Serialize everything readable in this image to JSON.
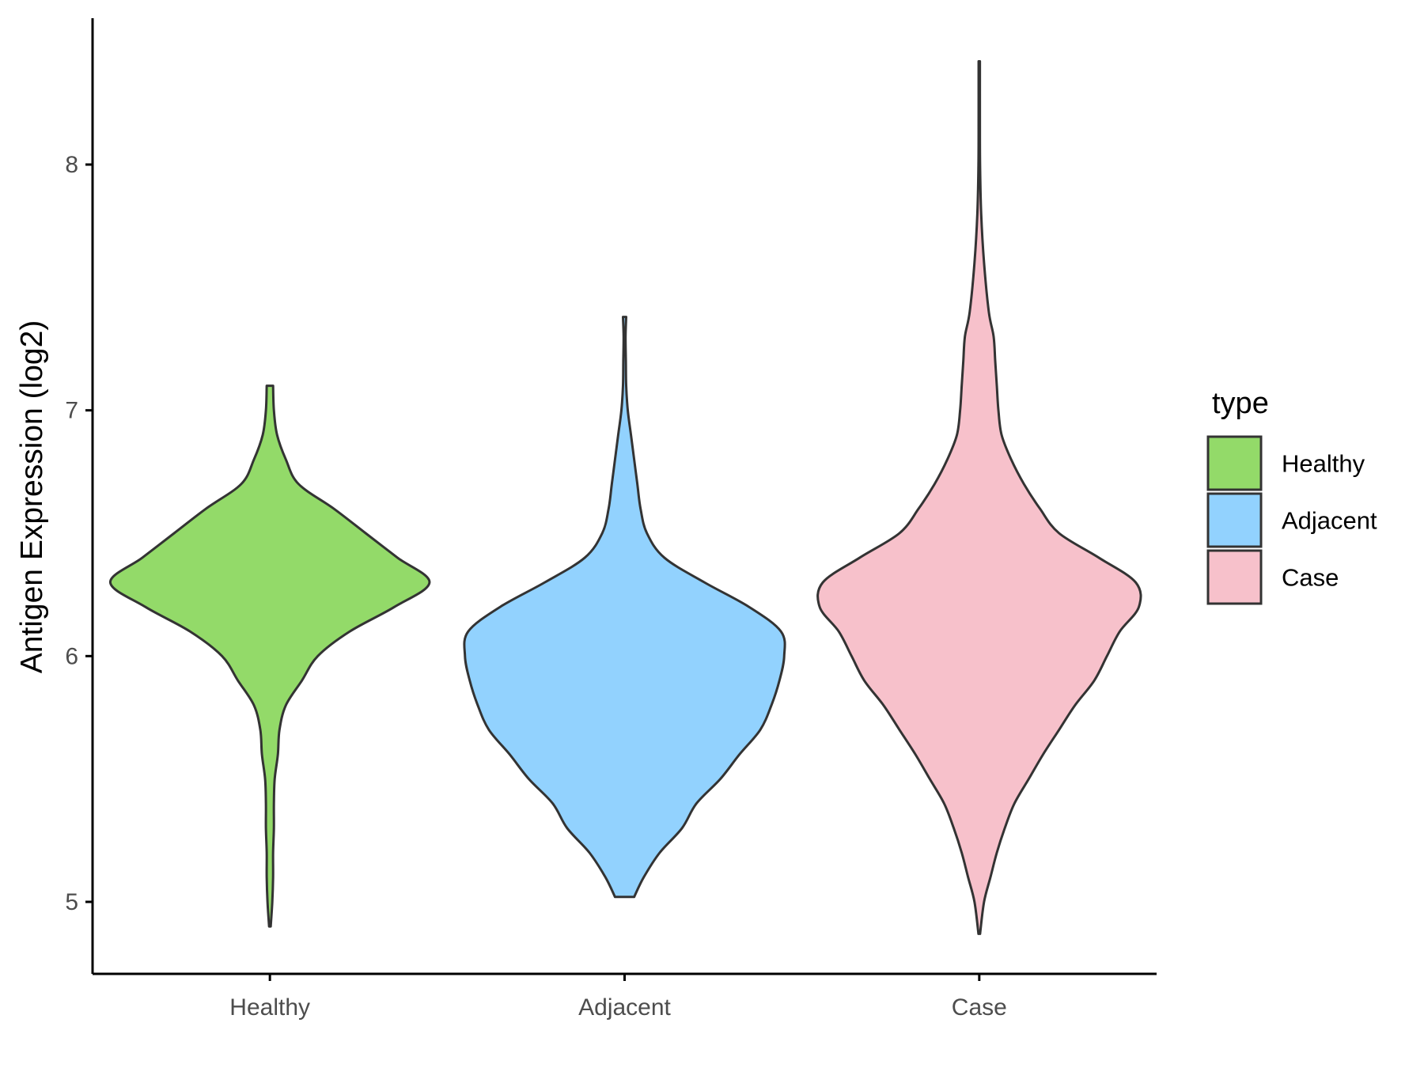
{
  "chart_data": {
    "type": "violin",
    "title": "",
    "xlabel": "",
    "ylabel": "Antigen Expression (log2)",
    "categories": [
      "Healthy",
      "Adjacent",
      "Case"
    ],
    "ylim": [
      4.7,
      8.6
    ],
    "yticks": [
      5,
      6,
      7,
      8
    ],
    "legend": {
      "title": "type",
      "position": "right",
      "entries": [
        "Healthy",
        "Adjacent",
        "Case"
      ]
    },
    "colors": {
      "Healthy": "#93da69",
      "Adjacent": "#92d2fe",
      "Case": "#f7c1cb",
      "outline": "#333333",
      "axis": "#000000"
    },
    "grid": false,
    "series": [
      {
        "name": "Healthy",
        "min": 4.9,
        "max": 7.1,
        "density": [
          [
            4.9,
            0.005
          ],
          [
            5.0,
            0.015
          ],
          [
            5.1,
            0.02
          ],
          [
            5.2,
            0.02
          ],
          [
            5.3,
            0.025
          ],
          [
            5.4,
            0.025
          ],
          [
            5.5,
            0.03
          ],
          [
            5.6,
            0.05
          ],
          [
            5.7,
            0.06
          ],
          [
            5.8,
            0.1
          ],
          [
            5.9,
            0.2
          ],
          [
            6.0,
            0.3
          ],
          [
            6.1,
            0.5
          ],
          [
            6.2,
            0.78
          ],
          [
            6.3,
            1.0
          ],
          [
            6.4,
            0.8
          ],
          [
            6.5,
            0.6
          ],
          [
            6.6,
            0.4
          ],
          [
            6.7,
            0.18
          ],
          [
            6.8,
            0.1
          ],
          [
            6.9,
            0.045
          ],
          [
            7.0,
            0.025
          ],
          [
            7.1,
            0.02
          ]
        ]
      },
      {
        "name": "Adjacent",
        "min": 5.02,
        "max": 7.38,
        "density": [
          [
            5.02,
            0.06
          ],
          [
            5.1,
            0.12
          ],
          [
            5.2,
            0.22
          ],
          [
            5.3,
            0.36
          ],
          [
            5.4,
            0.45
          ],
          [
            5.5,
            0.6
          ],
          [
            5.6,
            0.72
          ],
          [
            5.7,
            0.85
          ],
          [
            5.8,
            0.92
          ],
          [
            5.9,
            0.97
          ],
          [
            6.0,
            1.0
          ],
          [
            6.1,
            0.98
          ],
          [
            6.2,
            0.78
          ],
          [
            6.3,
            0.5
          ],
          [
            6.4,
            0.25
          ],
          [
            6.5,
            0.14
          ],
          [
            6.6,
            0.1
          ],
          [
            6.7,
            0.08
          ],
          [
            6.8,
            0.06
          ],
          [
            6.9,
            0.04
          ],
          [
            7.0,
            0.02
          ],
          [
            7.1,
            0.01
          ],
          [
            7.2,
            0.008
          ],
          [
            7.3,
            0.006
          ],
          [
            7.38,
            0.01
          ]
        ]
      },
      {
        "name": "Case",
        "min": 4.87,
        "max": 8.42,
        "density": [
          [
            4.87,
            0.005
          ],
          [
            5.0,
            0.03
          ],
          [
            5.1,
            0.07
          ],
          [
            5.2,
            0.11
          ],
          [
            5.3,
            0.16
          ],
          [
            5.4,
            0.22
          ],
          [
            5.5,
            0.31
          ],
          [
            5.6,
            0.4
          ],
          [
            5.7,
            0.5
          ],
          [
            5.8,
            0.6
          ],
          [
            5.9,
            0.72
          ],
          [
            6.0,
            0.8
          ],
          [
            6.1,
            0.88
          ],
          [
            6.2,
            1.0
          ],
          [
            6.3,
            0.98
          ],
          [
            6.4,
            0.75
          ],
          [
            6.5,
            0.5
          ],
          [
            6.6,
            0.38
          ],
          [
            6.7,
            0.28
          ],
          [
            6.8,
            0.2
          ],
          [
            6.9,
            0.14
          ],
          [
            7.0,
            0.12
          ],
          [
            7.1,
            0.11
          ],
          [
            7.2,
            0.1
          ],
          [
            7.3,
            0.09
          ],
          [
            7.4,
            0.06
          ],
          [
            7.6,
            0.03
          ],
          [
            7.8,
            0.012
          ],
          [
            8.0,
            0.005
          ],
          [
            8.2,
            0.004
          ],
          [
            8.42,
            0.004
          ]
        ]
      }
    ]
  }
}
